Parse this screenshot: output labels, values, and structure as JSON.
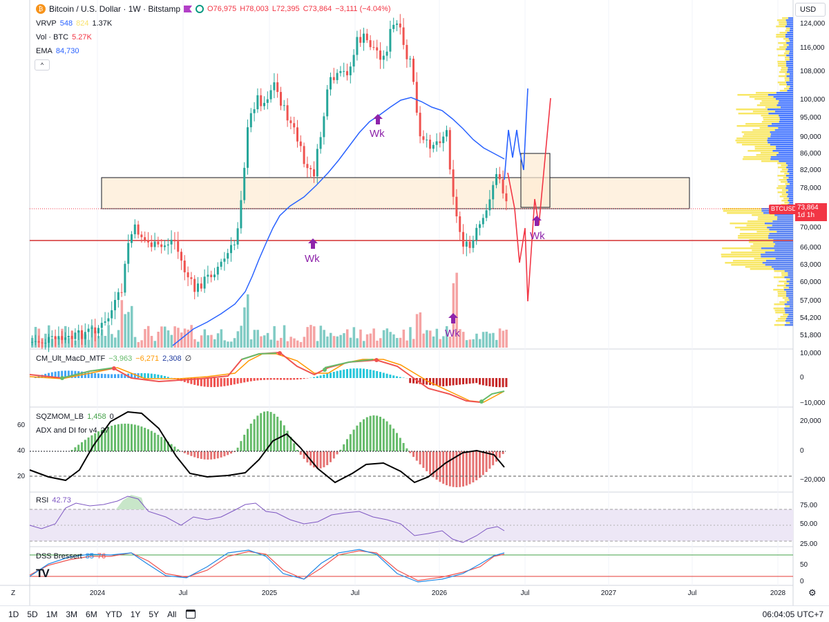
{
  "header": {
    "symbol_title": "Bitcoin / U.S. Dollar · 1W · Bitstamp",
    "ohlc_o": "O76,975",
    "ohlc_h": "H78,003",
    "ohlc_l": "L72,395",
    "ohlc_c": "C73,864",
    "ohlc_change": "−3,111 (−4.04%)",
    "currency_button": "USD"
  },
  "legend": {
    "vrvp_name": "VRVP",
    "vrvp_v1": "548",
    "vrvp_v2": "824",
    "vrvp_v3": "1.37K",
    "vol_name": "Vol · BTC",
    "vol_value": "5.27K",
    "ema_name": "EMA",
    "ema_value": "84,730",
    "collapse_icon": "^"
  },
  "price_axis": [
    "124,000",
    "116,000",
    "108,000",
    "100,000",
    "95,000",
    "90,000",
    "86,000",
    "82,000",
    "78,000",
    "74,000",
    "70,000",
    "66,000",
    "63,000",
    "60,000",
    "57,000",
    "54,200",
    "51,800"
  ],
  "current_price": {
    "symbol_tag": "BTCUSD",
    "value": "73,864",
    "countdown": "1d 1h"
  },
  "wk_labels": [
    "Wk",
    "Wk",
    "Wk",
    "Wk"
  ],
  "macd": {
    "name": "CM_Ult_MacD_MTF",
    "v1": "−3,963",
    "v2": "−6,271",
    "v3": "2,308",
    "v4": "∅",
    "axis": [
      "10,000",
      "0",
      "−10,000"
    ]
  },
  "sqz": {
    "name": "SQZMOM_LB",
    "value": "1,458",
    "value2": "0",
    "adx_name": "ADX and DI for v4",
    "adx_value": "27",
    "left_axis": [
      "60",
      "40",
      "20"
    ],
    "axis": [
      "20,000",
      "0",
      "−20,000"
    ]
  },
  "rsi": {
    "name": "RSI",
    "value": "42.73",
    "axis": [
      "75.00",
      "50.00",
      "25.00"
    ]
  },
  "dss": {
    "name": "DSS Bressert",
    "v1": "85",
    "v2": "76",
    "axis": [
      "50",
      "0"
    ]
  },
  "time_axis": [
    "2024",
    "Jul",
    "2025",
    "Jul",
    "2026",
    "Jul",
    "2027",
    "Jul",
    "2028"
  ],
  "bottom_bar": {
    "timeframes": [
      "1D",
      "5D",
      "1M",
      "3M",
      "6M",
      "YTD",
      "1Y",
      "5Y",
      "All"
    ],
    "clock": "06:04:05 UTC+7",
    "z_label": "Z"
  },
  "colors": {
    "up": "#26a69a",
    "down": "#ef5350",
    "ema": "#2962ff",
    "wk": "#8e24aa",
    "zone_fill": "#fdebd3",
    "support_line": "#d32f2f",
    "rsi_band": "#ede7f6"
  }
}
